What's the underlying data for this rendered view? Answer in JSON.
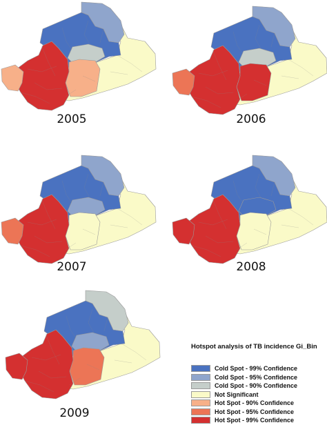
{
  "maps": [
    {
      "year": "2005",
      "regions": {
        "west": "hot99",
        "southwest": "hot90",
        "center": "cold99",
        "north": "cold95",
        "inner": "cold90",
        "south": "hot90",
        "east": "ns"
      }
    },
    {
      "year": "2006",
      "regions": {
        "west": "hot99",
        "southwest": "hot95",
        "center": "cold99",
        "north": "cold95",
        "inner": "cold90",
        "south": "hot99",
        "east": "ns"
      }
    },
    {
      "year": "2007",
      "regions": {
        "west": "hot99",
        "southwest": "hot95",
        "center": "cold99",
        "north": "cold95",
        "inner": "cold95",
        "south": "ns",
        "east": "ns"
      }
    },
    {
      "year": "2008",
      "regions": {
        "west": "hot99",
        "southwest": "hot99",
        "center": "cold99",
        "north": "cold95",
        "inner": "cold99",
        "south": "ns",
        "east": "ns"
      }
    },
    {
      "year": "2009",
      "regions": {
        "west": "hot99",
        "southwest": "hot99",
        "center": "cold99",
        "north": "cold90",
        "inner": "cold95",
        "south": "hot95",
        "east": "ns"
      }
    }
  ],
  "legend": {
    "title": "Hotspot analysis of TB incidence  Gi_Bin",
    "items": [
      {
        "key": "cold99",
        "label": "Cold Spot - 99% Confidence",
        "color": "#4a72c0"
      },
      {
        "key": "cold95",
        "label": "Cold Spot - 95% Confidence",
        "color": "#8fa5cc"
      },
      {
        "key": "cold90",
        "label": "Cold Spot - 90% Confidence",
        "color": "#c5ceca"
      },
      {
        "key": "ns",
        "label": "Not Significant",
        "color": "#fafac8"
      },
      {
        "key": "hot90",
        "label": "Hot Spot - 90% Confidence",
        "color": "#f7b089"
      },
      {
        "key": "hot95",
        "label": "Hot Spot - 95% Confidence",
        "color": "#ec7556"
      },
      {
        "key": "hot99",
        "label": "Hot Spot - 99% Confidence",
        "color": "#d43030"
      }
    ]
  }
}
